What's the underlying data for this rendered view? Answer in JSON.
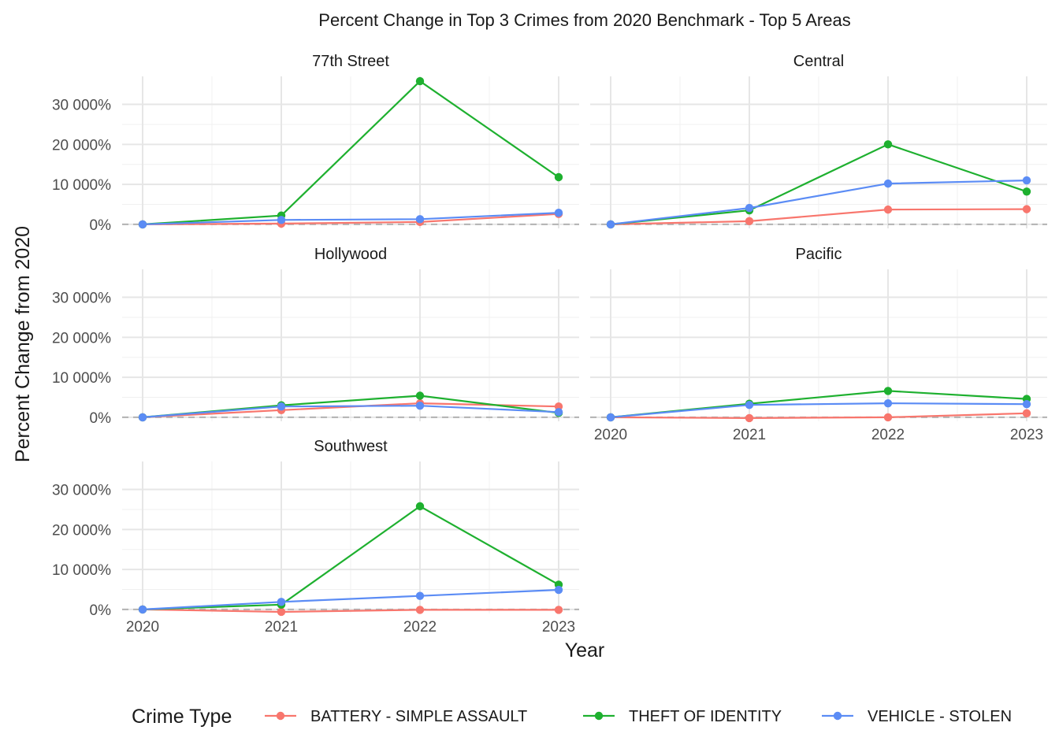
{
  "chart_data": {
    "type": "line",
    "title": "Percent Change in Top 3 Crimes from 2020 Benchmark - Top 5 Areas",
    "xlabel": "Year",
    "ylabel": "Percent Change from 2020",
    "x": [
      2020,
      2021,
      2022,
      2023
    ],
    "x_tick_labels": [
      "2020",
      "2021",
      "2022",
      "2023"
    ],
    "y_ticks": [
      0,
      10000,
      20000,
      30000
    ],
    "y_tick_labels": [
      "0%",
      "10 000%",
      "20 000%",
      "30 000%"
    ],
    "ylim": [
      -1000,
      37000
    ],
    "reference_line": 0,
    "legend": {
      "title": "Crime Type",
      "position": "bottom"
    },
    "series_meta": [
      {
        "name": "BATTERY - SIMPLE ASSAULT",
        "color": "#F8766D"
      },
      {
        "name": "THEFT OF IDENTITY",
        "color": "#1EB02F"
      },
      {
        "name": "VEHICLE - STOLEN",
        "color": "#5B8CF5"
      }
    ],
    "facets": [
      {
        "name": "77th Street",
        "series": [
          {
            "name": "BATTERY - SIMPLE ASSAULT",
            "values": [
              0,
              200,
              600,
              2600
            ]
          },
          {
            "name": "THEFT OF IDENTITY",
            "values": [
              0,
              2200,
              35800,
              11800
            ]
          },
          {
            "name": "VEHICLE - STOLEN",
            "values": [
              0,
              1100,
              1300,
              2900
            ]
          }
        ]
      },
      {
        "name": "Central",
        "series": [
          {
            "name": "BATTERY - SIMPLE ASSAULT",
            "values": [
              0,
              800,
              3700,
              3800
            ]
          },
          {
            "name": "THEFT OF IDENTITY",
            "values": [
              0,
              3500,
              20000,
              8200
            ]
          },
          {
            "name": "VEHICLE - STOLEN",
            "values": [
              0,
              4100,
              10200,
              11000
            ]
          }
        ]
      },
      {
        "name": "Hollywood",
        "series": [
          {
            "name": "BATTERY - SIMPLE ASSAULT",
            "values": [
              0,
              1800,
              3500,
              2700
            ]
          },
          {
            "name": "THEFT OF IDENTITY",
            "values": [
              0,
              3000,
              5400,
              1100
            ]
          },
          {
            "name": "VEHICLE - STOLEN",
            "values": [
              0,
              2700,
              2900,
              1300
            ]
          }
        ]
      },
      {
        "name": "Pacific",
        "series": [
          {
            "name": "BATTERY - SIMPLE ASSAULT",
            "values": [
              0,
              -200,
              0,
              1000
            ]
          },
          {
            "name": "THEFT OF IDENTITY",
            "values": [
              0,
              3400,
              6600,
              4600
            ]
          },
          {
            "name": "VEHICLE - STOLEN",
            "values": [
              0,
              3100,
              3500,
              3300
            ]
          }
        ]
      },
      {
        "name": "Southwest",
        "series": [
          {
            "name": "BATTERY - SIMPLE ASSAULT",
            "values": [
              0,
              -600,
              -100,
              -100
            ]
          },
          {
            "name": "THEFT OF IDENTITY",
            "values": [
              0,
              1200,
              25800,
              6200
            ]
          },
          {
            "name": "VEHICLE - STOLEN",
            "values": [
              0,
              1900,
              3400,
              4900
            ]
          }
        ]
      }
    ]
  }
}
